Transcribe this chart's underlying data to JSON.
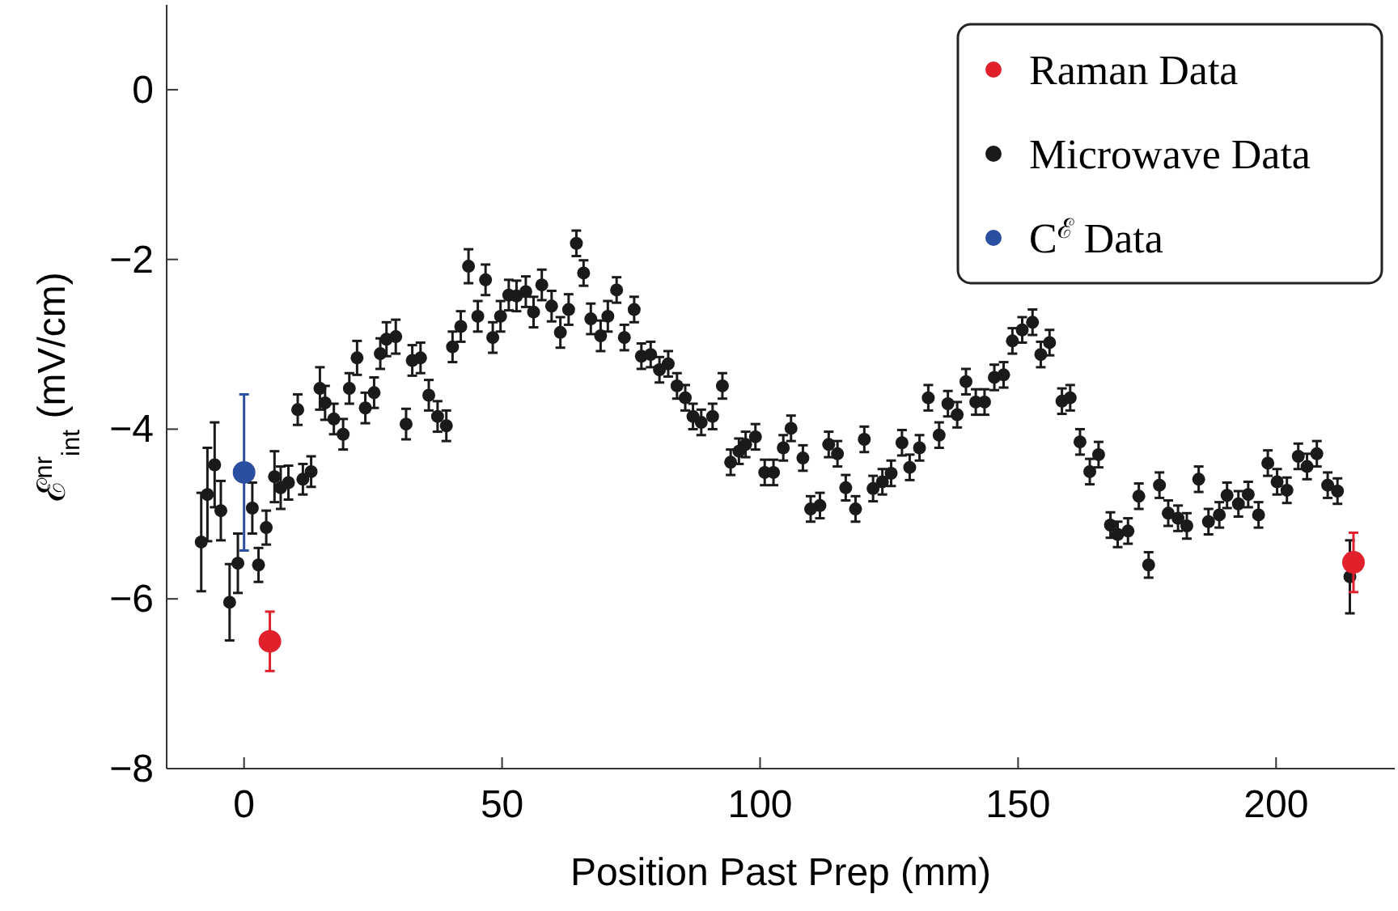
{
  "chart_data": {
    "type": "scatter",
    "xlabel": "Position Past Prep (mm)",
    "ylabel": "ℰ$^{nr}$$_{int}$ (mV/cm)",
    "xlim": [
      -15,
      223
    ],
    "ylim": [
      -8,
      1
    ],
    "xticks": [
      0,
      50,
      100,
      150,
      200
    ],
    "yticks": [
      {
        "value": -8,
        "label": "−8"
      },
      {
        "value": -6,
        "label": "−6"
      },
      {
        "value": -4,
        "label": "−4"
      },
      {
        "value": -2,
        "label": "−2"
      },
      0
    ],
    "grid": false,
    "legend": "top right",
    "marker": "circle",
    "series": [
      {
        "name": "Raman Data",
        "color": "#e0202a",
        "x": [
          5,
          215
        ],
        "values": [
          -6.5,
          -5.57
        ],
        "errors": [
          0.35,
          0.35
        ]
      },
      {
        "name": "Microwave Data",
        "color": "#1a1a1a",
        "x": [
          -8.3,
          -7.1,
          -5.7,
          -4.5,
          -2.8,
          -1.2,
          1.6,
          2.8,
          4.3,
          5.9,
          7.1,
          8.6,
          10.4,
          11.4,
          13.0,
          14.7,
          15.7,
          17.4,
          19.2,
          20.4,
          21.9,
          23.5,
          25.2,
          26.4,
          27.6,
          29.4,
          31.4,
          32.6,
          34.2,
          35.8,
          37.5,
          39.2,
          40.4,
          42.0,
          43.5,
          45.3,
          46.8,
          48.2,
          49.7,
          51.3,
          52.8,
          54.6,
          56.1,
          57.7,
          59.6,
          61.3,
          62.9,
          64.4,
          65.8,
          67.2,
          69.1,
          70.5,
          72.2,
          73.7,
          75.6,
          77.0,
          78.8,
          80.5,
          82.2,
          83.9,
          85.5,
          87.0,
          88.6,
          90.8,
          92.7,
          94.3,
          95.9,
          97.2,
          99.1,
          100.9,
          102.6,
          104.5,
          106.0,
          108.3,
          109.8,
          111.6,
          113.3,
          115.0,
          116.6,
          118.5,
          120.2,
          121.9,
          123.7,
          125.4,
          127.5,
          129.0,
          130.9,
          132.6,
          134.7,
          136.4,
          138.2,
          139.9,
          141.8,
          143.5,
          145.4,
          147.2,
          148.9,
          150.8,
          152.8,
          154.4,
          156.1,
          158.5,
          160.1,
          162.0,
          163.9,
          165.6,
          167.9,
          169.3,
          171.3,
          173.4,
          175.3,
          177.4,
          179.1,
          181.0,
          182.7,
          185.0,
          186.9,
          189.0,
          190.5,
          192.7,
          194.6,
          196.6,
          198.4,
          200.2,
          202.1,
          204.3,
          206.0,
          207.9,
          210.0,
          211.9,
          214.3
        ],
        "values": [
          -5.33,
          -4.77,
          -4.42,
          -4.96,
          -6.04,
          -5.58,
          -4.93,
          -5.6,
          -5.16,
          -4.56,
          -4.69,
          -4.63,
          -3.77,
          -4.59,
          -4.5,
          -3.52,
          -3.69,
          -3.88,
          -4.06,
          -3.52,
          -3.16,
          -3.75,
          -3.57,
          -3.11,
          -2.94,
          -2.91,
          -3.94,
          -3.19,
          -3.16,
          -3.6,
          -3.85,
          -3.96,
          -3.03,
          -2.79,
          -2.08,
          -2.67,
          -2.24,
          -2.92,
          -2.67,
          -2.42,
          -2.43,
          -2.38,
          -2.62,
          -2.3,
          -2.55,
          -2.86,
          -2.59,
          -1.81,
          -2.16,
          -2.7,
          -2.9,
          -2.67,
          -2.36,
          -2.92,
          -2.59,
          -3.14,
          -3.12,
          -3.3,
          -3.23,
          -3.49,
          -3.63,
          -3.85,
          -3.92,
          -3.85,
          -3.49,
          -4.39,
          -4.26,
          -4.18,
          -4.09,
          -4.51,
          -4.51,
          -4.22,
          -3.99,
          -4.34,
          -4.94,
          -4.9,
          -4.18,
          -4.29,
          -4.69,
          -4.94,
          -4.12,
          -4.7,
          -4.62,
          -4.52,
          -4.16,
          -4.45,
          -4.22,
          -3.63,
          -4.07,
          -3.7,
          -3.83,
          -3.44,
          -3.68,
          -3.68,
          -3.39,
          -3.36,
          -2.96,
          -2.83,
          -2.74,
          -3.12,
          -2.98,
          -3.67,
          -3.63,
          -4.15,
          -4.5,
          -4.3,
          -5.13,
          -5.24,
          -5.2,
          -4.79,
          -5.6,
          -4.66,
          -4.99,
          -5.05,
          -5.14,
          -4.59,
          -5.09,
          -5.01,
          -4.78,
          -4.88,
          -4.77,
          -5.01,
          -4.4,
          -4.62,
          -4.72,
          -4.32,
          -4.44,
          -4.29,
          -4.66,
          -4.73,
          -5.74
        ],
        "errors": [
          0.58,
          0.55,
          0.5,
          0.35,
          0.45,
          0.35,
          0.3,
          0.2,
          0.2,
          0.3,
          0.25,
          0.2,
          0.18,
          0.18,
          0.18,
          0.25,
          0.2,
          0.18,
          0.18,
          0.18,
          0.2,
          0.18,
          0.18,
          0.18,
          0.2,
          0.2,
          0.18,
          0.18,
          0.18,
          0.18,
          0.18,
          0.18,
          0.18,
          0.18,
          0.2,
          0.18,
          0.18,
          0.18,
          0.18,
          0.18,
          0.18,
          0.18,
          0.18,
          0.18,
          0.18,
          0.18,
          0.18,
          0.15,
          0.15,
          0.18,
          0.18,
          0.18,
          0.15,
          0.15,
          0.15,
          0.15,
          0.15,
          0.15,
          0.15,
          0.15,
          0.15,
          0.15,
          0.15,
          0.15,
          0.15,
          0.15,
          0.15,
          0.15,
          0.15,
          0.15,
          0.15,
          0.15,
          0.15,
          0.15,
          0.15,
          0.15,
          0.15,
          0.15,
          0.15,
          0.15,
          0.15,
          0.15,
          0.15,
          0.15,
          0.15,
          0.15,
          0.15,
          0.15,
          0.15,
          0.15,
          0.15,
          0.15,
          0.15,
          0.15,
          0.15,
          0.15,
          0.15,
          0.15,
          0.15,
          0.15,
          0.15,
          0.15,
          0.15,
          0.15,
          0.15,
          0.15,
          0.15,
          0.15,
          0.15,
          0.15,
          0.15,
          0.15,
          0.15,
          0.15,
          0.15,
          0.15,
          0.15,
          0.15,
          0.15,
          0.15,
          0.15,
          0.15,
          0.15,
          0.15,
          0.15,
          0.15,
          0.15,
          0.15,
          0.15,
          0.15,
          0.43
        ]
      },
      {
        "name": "C$^{ℰ}$ Data",
        "color": "#2a4fa0",
        "x": [
          0
        ],
        "values": [
          -4.51
        ],
        "errors": [
          0.92
        ]
      }
    ]
  }
}
